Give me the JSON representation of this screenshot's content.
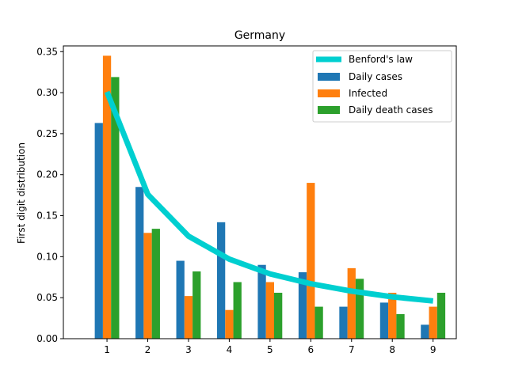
{
  "chart_data": {
    "type": "bar",
    "title": "Germany",
    "xlabel": "",
    "ylabel": "First digit distribution",
    "categories": [
      "1",
      "2",
      "3",
      "4",
      "5",
      "6",
      "7",
      "8",
      "9"
    ],
    "ylim": [
      0,
      0.357
    ],
    "yticks": [
      "0.00",
      "0.05",
      "0.10",
      "0.15",
      "0.20",
      "0.25",
      "0.30",
      "0.35"
    ],
    "series": [
      {
        "name": "Daily cases",
        "type": "bar",
        "color": "#1f77b4",
        "values": [
          0.263,
          0.185,
          0.095,
          0.142,
          0.09,
          0.081,
          0.039,
          0.044,
          0.017
        ]
      },
      {
        "name": "Infected",
        "type": "bar",
        "color": "#ff7f0e",
        "values": [
          0.345,
          0.129,
          0.052,
          0.035,
          0.069,
          0.19,
          0.086,
          0.056,
          0.039
        ]
      },
      {
        "name": "Daily death cases",
        "type": "bar",
        "color": "#2ca02c",
        "values": [
          0.319,
          0.134,
          0.082,
          0.069,
          0.056,
          0.039,
          0.073,
          0.03,
          0.056
        ]
      }
    ],
    "line": {
      "name": "Benford's law",
      "color": "#00cfd0",
      "values": [
        0.301,
        0.176,
        0.125,
        0.097,
        0.079,
        0.067,
        0.058,
        0.051,
        0.046
      ]
    },
    "legend": {
      "placement": "top-right",
      "entries": [
        "Benford's law",
        "Daily cases",
        "Infected",
        "Daily death cases"
      ]
    }
  }
}
